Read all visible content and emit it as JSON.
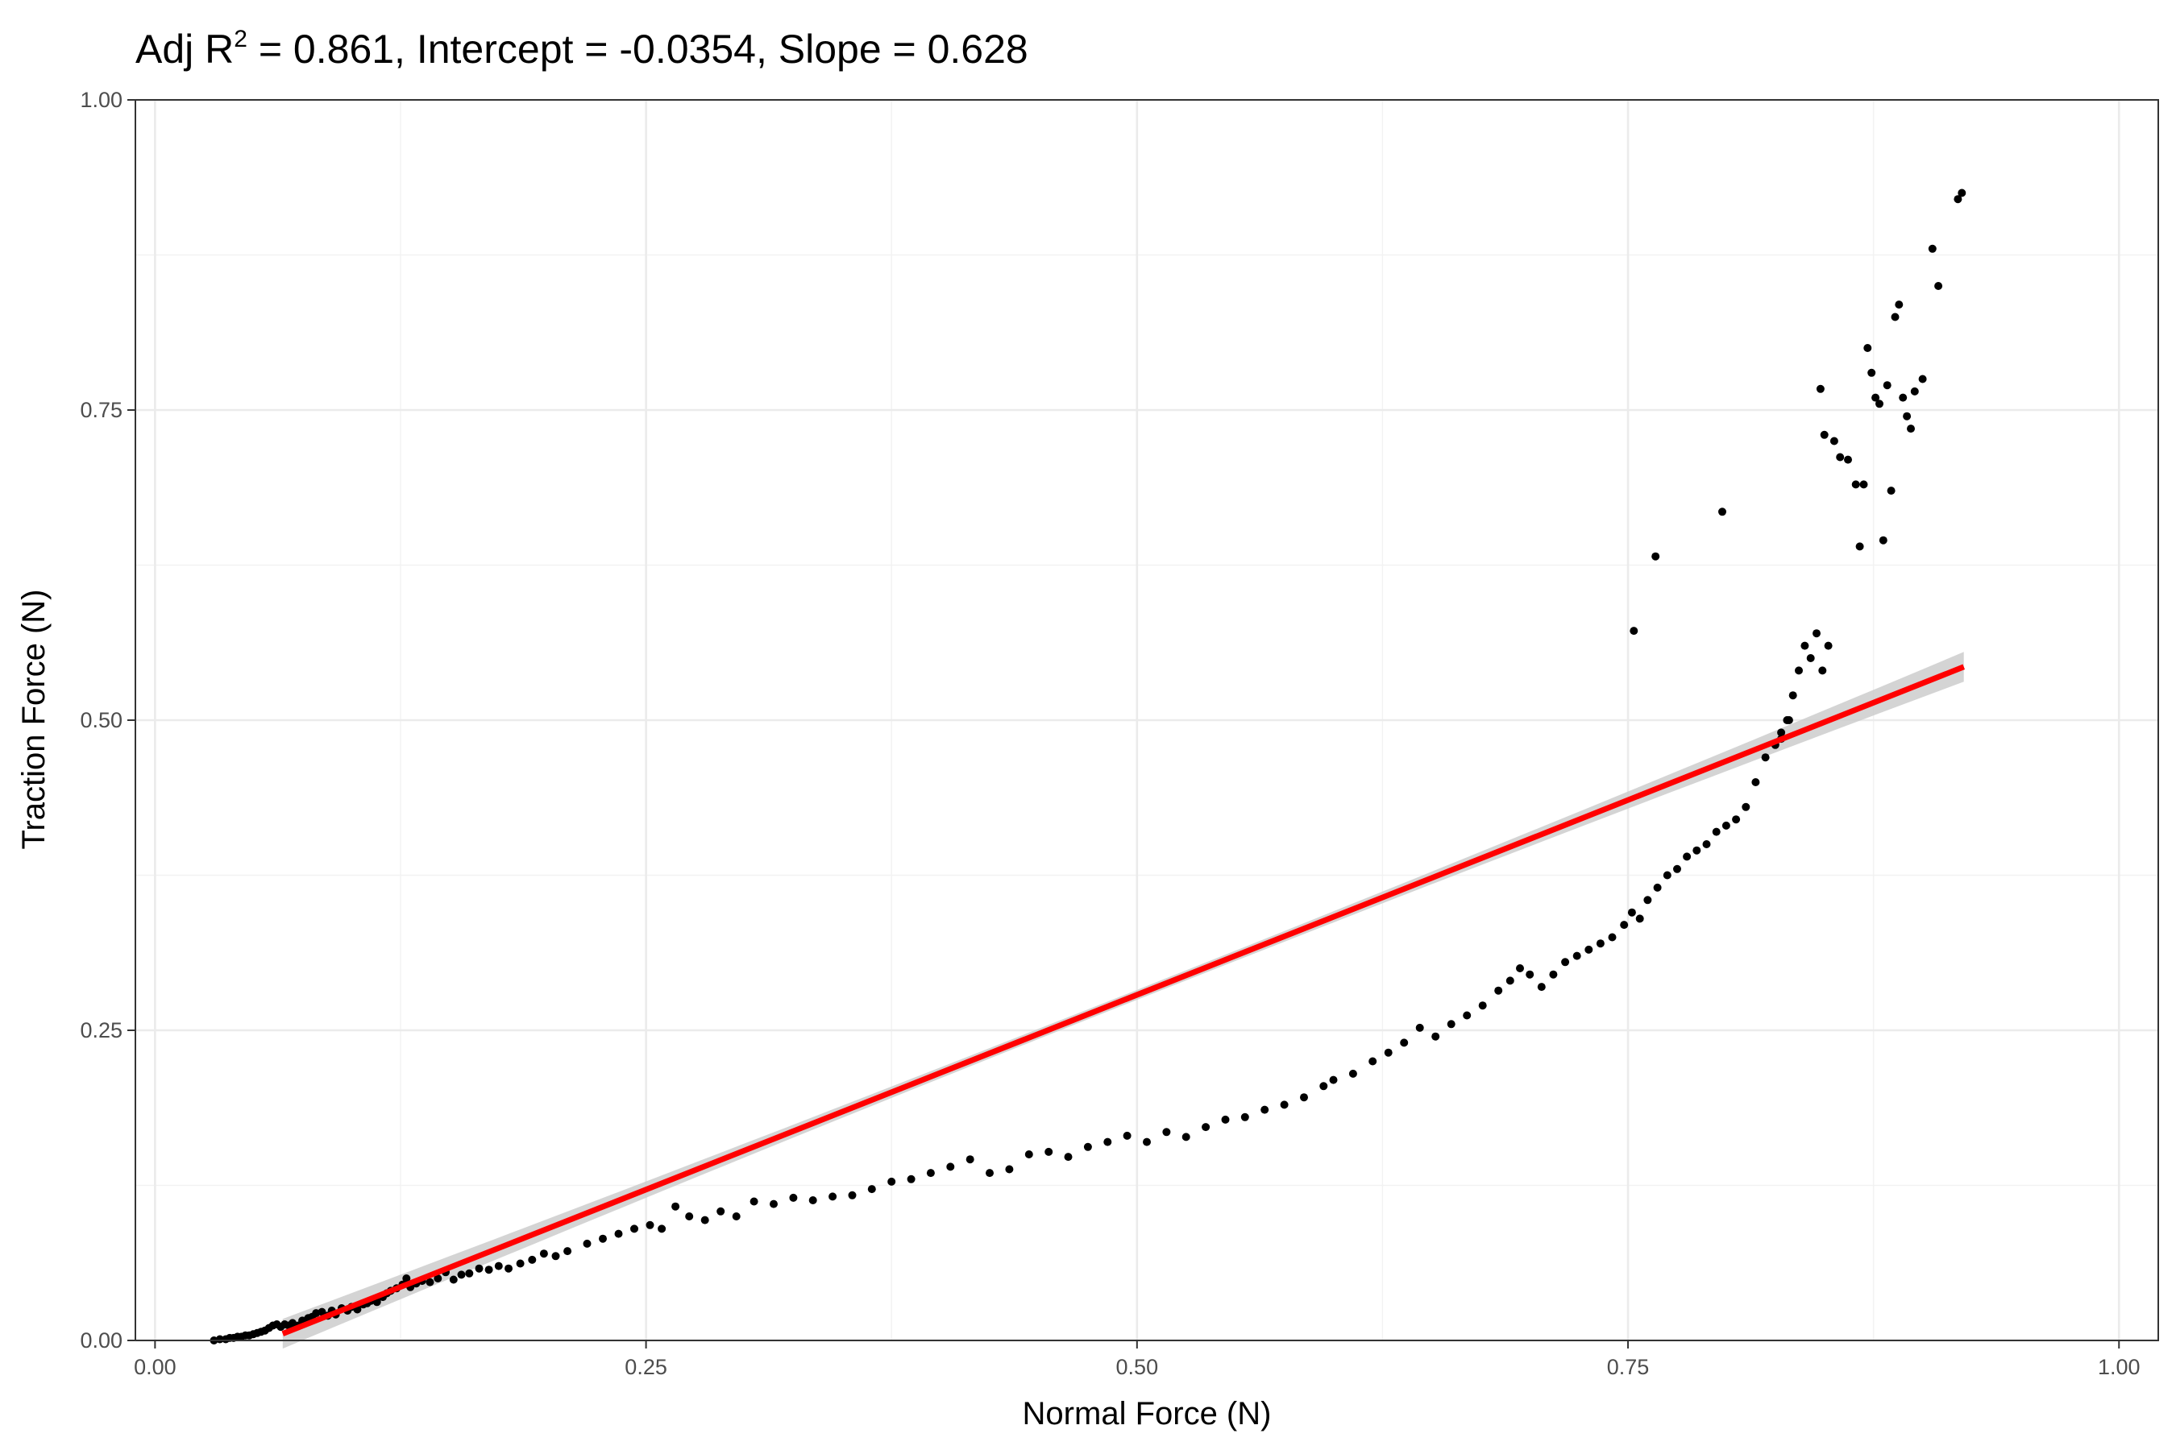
{
  "chart_data": {
    "type": "scatter",
    "title_parts": {
      "prefix": "Adj R",
      "superscript": "2",
      "suffix": " = 0.861, Intercept = -0.0354, Slope = 0.628"
    },
    "xlabel": "Normal Force (N)",
    "ylabel": "Traction Force (N)",
    "xlim": [
      -0.01,
      1.02
    ],
    "ylim": [
      0.0,
      1.0
    ],
    "x_ticks": [
      0.0,
      0.25,
      0.5,
      0.75,
      1.0
    ],
    "x_tick_labels": [
      "0.00",
      "0.25",
      "0.50",
      "0.75",
      "1.00"
    ],
    "y_ticks": [
      0.0,
      0.25,
      0.5,
      0.75,
      1.0
    ],
    "y_tick_labels": [
      "0.00",
      "0.25",
      "0.50",
      "0.75",
      "1.00"
    ],
    "grid": true,
    "colors": {
      "points": "#000000",
      "fit_line": "#ff0000",
      "confidence_band": "#cccccc"
    },
    "fit": {
      "intercept": -0.0354,
      "slope": 0.628,
      "x_range": [
        0.065,
        0.921
      ],
      "band_half_width_ends": 0.012,
      "band_half_width_center": 0.004
    },
    "points": [
      [
        0.03,
        0.0
      ],
      [
        0.033,
        0.001
      ],
      [
        0.036,
        0.001
      ],
      [
        0.038,
        0.002
      ],
      [
        0.04,
        0.002
      ],
      [
        0.042,
        0.003
      ],
      [
        0.044,
        0.003
      ],
      [
        0.046,
        0.004
      ],
      [
        0.048,
        0.004
      ],
      [
        0.05,
        0.005
      ],
      [
        0.052,
        0.006
      ],
      [
        0.054,
        0.007
      ],
      [
        0.056,
        0.008
      ],
      [
        0.058,
        0.01
      ],
      [
        0.06,
        0.012
      ],
      [
        0.062,
        0.013
      ],
      [
        0.064,
        0.011
      ],
      [
        0.066,
        0.013
      ],
      [
        0.068,
        0.012
      ],
      [
        0.07,
        0.014
      ],
      [
        0.073,
        0.012
      ],
      [
        0.075,
        0.016
      ],
      [
        0.078,
        0.018
      ],
      [
        0.08,
        0.019
      ],
      [
        0.082,
        0.022
      ],
      [
        0.085,
        0.023
      ],
      [
        0.088,
        0.02
      ],
      [
        0.09,
        0.024
      ],
      [
        0.092,
        0.021
      ],
      [
        0.095,
        0.026
      ],
      [
        0.098,
        0.024
      ],
      [
        0.1,
        0.027
      ],
      [
        0.103,
        0.025
      ],
      [
        0.106,
        0.029
      ],
      [
        0.108,
        0.03
      ],
      [
        0.11,
        0.032
      ],
      [
        0.113,
        0.031
      ],
      [
        0.116,
        0.035
      ],
      [
        0.118,
        0.038
      ],
      [
        0.12,
        0.04
      ],
      [
        0.123,
        0.042
      ],
      [
        0.126,
        0.045
      ],
      [
        0.128,
        0.05
      ],
      [
        0.13,
        0.043
      ],
      [
        0.133,
        0.046
      ],
      [
        0.136,
        0.048
      ],
      [
        0.14,
        0.047
      ],
      [
        0.144,
        0.05
      ],
      [
        0.148,
        0.055
      ],
      [
        0.152,
        0.049
      ],
      [
        0.156,
        0.053
      ],
      [
        0.16,
        0.054
      ],
      [
        0.165,
        0.058
      ],
      [
        0.17,
        0.057
      ],
      [
        0.175,
        0.06
      ],
      [
        0.18,
        0.058
      ],
      [
        0.186,
        0.062
      ],
      [
        0.192,
        0.065
      ],
      [
        0.198,
        0.07
      ],
      [
        0.204,
        0.068
      ],
      [
        0.21,
        0.072
      ],
      [
        0.22,
        0.078
      ],
      [
        0.228,
        0.082
      ],
      [
        0.236,
        0.086
      ],
      [
        0.244,
        0.09
      ],
      [
        0.252,
        0.093
      ],
      [
        0.258,
        0.09
      ],
      [
        0.265,
        0.108
      ],
      [
        0.272,
        0.1
      ],
      [
        0.28,
        0.097
      ],
      [
        0.288,
        0.104
      ],
      [
        0.296,
        0.1
      ],
      [
        0.305,
        0.112
      ],
      [
        0.315,
        0.11
      ],
      [
        0.325,
        0.115
      ],
      [
        0.335,
        0.113
      ],
      [
        0.345,
        0.116
      ],
      [
        0.355,
        0.117
      ],
      [
        0.365,
        0.122
      ],
      [
        0.375,
        0.128
      ],
      [
        0.385,
        0.13
      ],
      [
        0.395,
        0.135
      ],
      [
        0.405,
        0.14
      ],
      [
        0.415,
        0.146
      ],
      [
        0.425,
        0.135
      ],
      [
        0.435,
        0.138
      ],
      [
        0.445,
        0.15
      ],
      [
        0.455,
        0.152
      ],
      [
        0.465,
        0.148
      ],
      [
        0.475,
        0.156
      ],
      [
        0.485,
        0.16
      ],
      [
        0.495,
        0.165
      ],
      [
        0.505,
        0.16
      ],
      [
        0.515,
        0.168
      ],
      [
        0.525,
        0.164
      ],
      [
        0.535,
        0.172
      ],
      [
        0.545,
        0.178
      ],
      [
        0.555,
        0.18
      ],
      [
        0.565,
        0.186
      ],
      [
        0.575,
        0.19
      ],
      [
        0.585,
        0.196
      ],
      [
        0.595,
        0.205
      ],
      [
        0.6,
        0.21
      ],
      [
        0.61,
        0.215
      ],
      [
        0.62,
        0.225
      ],
      [
        0.628,
        0.232
      ],
      [
        0.636,
        0.24
      ],
      [
        0.644,
        0.252
      ],
      [
        0.652,
        0.245
      ],
      [
        0.66,
        0.255
      ],
      [
        0.668,
        0.262
      ],
      [
        0.676,
        0.27
      ],
      [
        0.684,
        0.282
      ],
      [
        0.69,
        0.29
      ],
      [
        0.695,
        0.3
      ],
      [
        0.7,
        0.295
      ],
      [
        0.706,
        0.285
      ],
      [
        0.712,
        0.295
      ],
      [
        0.718,
        0.305
      ],
      [
        0.724,
        0.31
      ],
      [
        0.73,
        0.315
      ],
      [
        0.736,
        0.32
      ],
      [
        0.742,
        0.325
      ],
      [
        0.748,
        0.335
      ],
      [
        0.752,
        0.345
      ],
      [
        0.756,
        0.34
      ],
      [
        0.76,
        0.355
      ],
      [
        0.765,
        0.365
      ],
      [
        0.77,
        0.375
      ],
      [
        0.775,
        0.38
      ],
      [
        0.78,
        0.39
      ],
      [
        0.785,
        0.395
      ],
      [
        0.79,
        0.4
      ],
      [
        0.795,
        0.41
      ],
      [
        0.8,
        0.415
      ],
      [
        0.805,
        0.42
      ],
      [
        0.81,
        0.43
      ],
      [
        0.815,
        0.45
      ],
      [
        0.82,
        0.47
      ],
      [
        0.825,
        0.48
      ],
      [
        0.828,
        0.49
      ],
      [
        0.831,
        0.5
      ],
      [
        0.834,
        0.52
      ],
      [
        0.837,
        0.54
      ],
      [
        0.84,
        0.56
      ],
      [
        0.843,
        0.55
      ],
      [
        0.846,
        0.57
      ],
      [
        0.849,
        0.54
      ],
      [
        0.852,
        0.56
      ],
      [
        0.753,
        0.572
      ],
      [
        0.764,
        0.632
      ],
      [
        0.798,
        0.668
      ],
      [
        0.848,
        0.767
      ],
      [
        0.85,
        0.73
      ],
      [
        0.855,
        0.725
      ],
      [
        0.858,
        0.712
      ],
      [
        0.862,
        0.71
      ],
      [
        0.866,
        0.69
      ],
      [
        0.868,
        0.64
      ],
      [
        0.87,
        0.69
      ],
      [
        0.872,
        0.8
      ],
      [
        0.874,
        0.78
      ],
      [
        0.876,
        0.76
      ],
      [
        0.878,
        0.755
      ],
      [
        0.88,
        0.645
      ],
      [
        0.882,
        0.77
      ],
      [
        0.884,
        0.685
      ],
      [
        0.886,
        0.825
      ],
      [
        0.888,
        0.835
      ],
      [
        0.89,
        0.76
      ],
      [
        0.892,
        0.745
      ],
      [
        0.894,
        0.735
      ],
      [
        0.896,
        0.765
      ],
      [
        0.9,
        0.775
      ],
      [
        0.905,
        0.88
      ],
      [
        0.908,
        0.85
      ],
      [
        0.918,
        0.92
      ],
      [
        0.92,
        0.925
      ],
      [
        0.832,
        0.5
      ],
      [
        0.828,
        0.485
      ]
    ]
  }
}
